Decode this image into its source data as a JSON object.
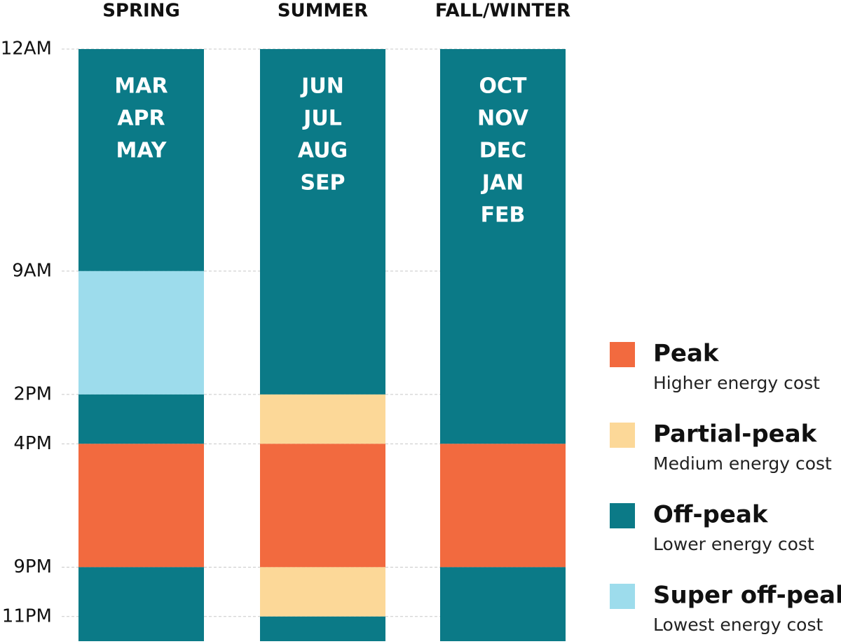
{
  "chart_data": {
    "type": "schedule",
    "ylim": [
      0,
      24
    ],
    "yticks": [
      {
        "value": 0,
        "label": "12AM"
      },
      {
        "value": 9,
        "label": "9AM"
      },
      {
        "value": 14,
        "label": "2PM"
      },
      {
        "value": 16,
        "label": "4PM"
      },
      {
        "value": 21,
        "label": "9PM"
      },
      {
        "value": 23,
        "label": "11PM"
      }
    ],
    "grid": true,
    "tiers": [
      {
        "name": "Peak",
        "description": "Higher energy cost",
        "color": "#f26a3f"
      },
      {
        "name": "Partial-peak",
        "description": "Medium energy cost",
        "color": "#fcd898"
      },
      {
        "name": "Off-peak",
        "description": "Lower energy cost",
        "color": "#0b7a87"
      },
      {
        "name": "Super off-peak",
        "description": "Lowest energy cost",
        "color": "#9ddcec"
      }
    ],
    "columns": [
      {
        "name": "SPRING",
        "months": [
          "MAR",
          "APR",
          "MAY"
        ],
        "segments": [
          {
            "tier": "Off-peak",
            "start": 0,
            "end": 9
          },
          {
            "tier": "Super off-peak",
            "start": 9,
            "end": 14
          },
          {
            "tier": "Off-peak",
            "start": 14,
            "end": 16
          },
          {
            "tier": "Peak",
            "start": 16,
            "end": 21
          },
          {
            "tier": "Off-peak",
            "start": 21,
            "end": 24
          }
        ]
      },
      {
        "name": "SUMMER",
        "months": [
          "JUN",
          "JUL",
          "AUG",
          "SEP"
        ],
        "segments": [
          {
            "tier": "Off-peak",
            "start": 0,
            "end": 14
          },
          {
            "tier": "Partial-peak",
            "start": 14,
            "end": 16
          },
          {
            "tier": "Peak",
            "start": 16,
            "end": 21
          },
          {
            "tier": "Partial-peak",
            "start": 21,
            "end": 23
          },
          {
            "tier": "Off-peak",
            "start": 23,
            "end": 24
          }
        ]
      },
      {
        "name": "FALL/WINTER",
        "months": [
          "OCT",
          "NOV",
          "DEC",
          "JAN",
          "FEB"
        ],
        "segments": [
          {
            "tier": "Off-peak",
            "start": 0,
            "end": 16
          },
          {
            "tier": "Peak",
            "start": 16,
            "end": 21
          },
          {
            "tier": "Off-peak",
            "start": 21,
            "end": 24
          }
        ]
      }
    ]
  }
}
